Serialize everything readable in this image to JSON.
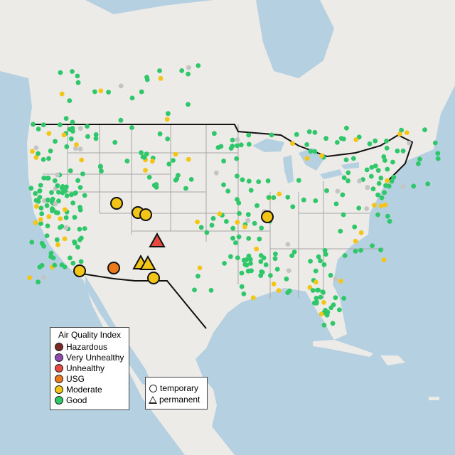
{
  "legend": {
    "title": "Air Quality Index",
    "items": [
      {
        "label": "Hazardous",
        "color": "#7e2623"
      },
      {
        "label": "Very Unhealthy",
        "color": "#8e4ab0"
      },
      {
        "label": "Unhealthy",
        "color": "#e8493f"
      },
      {
        "label": "USG",
        "color": "#ec7a1b"
      },
      {
        "label": "Moderate",
        "color": "#f3c517"
      },
      {
        "label": "Good",
        "color": "#2fc76a"
      }
    ]
  },
  "monitor_types": {
    "items": [
      {
        "label": "temporary",
        "shape": "circle"
      },
      {
        "label": "permanent",
        "shape": "triangle"
      }
    ]
  },
  "colors": {
    "land": "#ecebe8",
    "water": "#b5d0e0",
    "no_data": "#c4c4c4",
    "borders": "#111111",
    "state_lines": "#a7a7a7"
  }
}
